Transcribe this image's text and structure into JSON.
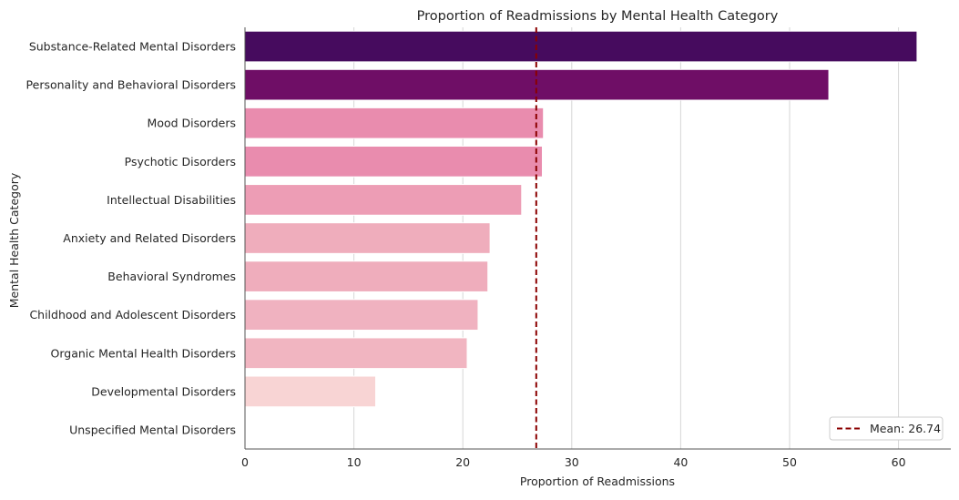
{
  "chart_data": {
    "type": "bar",
    "orientation": "horizontal",
    "title": "Proportion of Readmissions by Mental Health Category",
    "xlabel": "Proportion of Readmissions",
    "ylabel": "Mental Health Category",
    "xlim": [
      0,
      64.8
    ],
    "xticks": [
      0,
      10,
      20,
      30,
      40,
      50,
      60
    ],
    "grid": "vertical",
    "categories": [
      "Substance-Related Mental Disorders",
      "Personality and Behavioral Disorders",
      "Mood Disorders",
      "Psychotic Disorders",
      "Intellectual Disabilities",
      "Anxiety and Related Disorders",
      "Behavioral Syndromes",
      "Childhood and Adolescent Disorders",
      "Organic Mental Health Disorders",
      "Developmental Disorders",
      "Unspecified Mental Disorders"
    ],
    "values": [
      61.7,
      53.6,
      27.4,
      27.3,
      25.4,
      22.5,
      22.3,
      21.4,
      20.4,
      12.0,
      0.0
    ],
    "colors": [
      "#460b5e",
      "#6f0e66",
      "#e98cae",
      "#e98cae",
      "#ed9db5",
      "#efadbc",
      "#efadbc",
      "#f0b2c0",
      "#f1b5c1",
      "#f8d4d4",
      "#fde0dd"
    ],
    "mean_line": {
      "value": 26.74,
      "label": "Mean: 26.74",
      "color": "#8b0000",
      "style": "dashed"
    },
    "legend": {
      "position": "bottom-right"
    }
  }
}
